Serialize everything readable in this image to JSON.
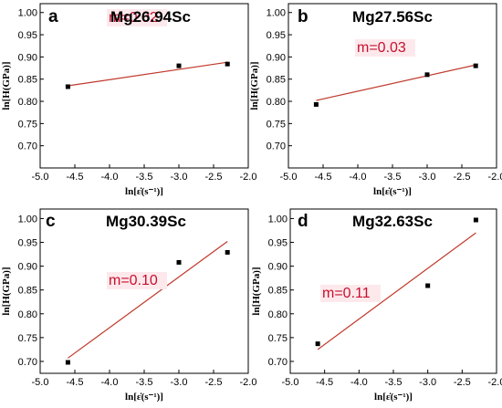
{
  "colors": {
    "fit_line": "#c0392b",
    "slope_text": "#c8102e",
    "point": "#000000",
    "label_highlight": "#fde9ec"
  },
  "chart_data": [
    {
      "type": "scatter",
      "panel_letter": "a",
      "title": "Mg26.94Sc",
      "xlabel": "ln[ε̇(s⁻¹)]",
      "ylabel": "ln[H(GPa)]",
      "xlim": [
        -5.0,
        -2.0
      ],
      "ylim": [
        0.65,
        1.02
      ],
      "xticks": [
        "-5.0",
        "-4.5",
        "-4.0",
        "-3.5",
        "-3.0",
        "-2.5",
        "-2.0"
      ],
      "yticks": [
        "0.70",
        "0.75",
        "0.80",
        "0.85",
        "0.90",
        "0.95",
        "1.00"
      ],
      "x": [
        -4.6,
        -3.0,
        -2.3
      ],
      "y": [
        0.833,
        0.88,
        0.884
      ],
      "fit": {
        "x": [
          -4.6,
          -2.3
        ],
        "y": [
          0.835,
          0.888
        ]
      },
      "annotation": "m=0.02"
    },
    {
      "type": "scatter",
      "panel_letter": "b",
      "title": "Mg27.56Sc",
      "xlabel": "ln[ε̇(s⁻¹)]",
      "ylabel": "ln[H(GPa)]",
      "xlim": [
        -5.0,
        -2.0
      ],
      "ylim": [
        0.65,
        1.02
      ],
      "xticks": [
        "-5.0",
        "-4.5",
        "-4.0",
        "-3.5",
        "-3.0",
        "-2.5",
        "-2.0"
      ],
      "yticks": [
        "0.70",
        "0.75",
        "0.80",
        "0.85",
        "0.90",
        "0.95",
        "1.00"
      ],
      "x": [
        -4.6,
        -3.0,
        -2.3
      ],
      "y": [
        0.793,
        0.86,
        0.88
      ],
      "fit": {
        "x": [
          -4.6,
          -2.3
        ],
        "y": [
          0.802,
          0.882
        ]
      },
      "annotation": "m=0.03"
    },
    {
      "type": "scatter",
      "panel_letter": "c",
      "title": "Mg30.39Sc",
      "xlabel": "ln[ε̇(s⁻¹)]",
      "ylabel": "ln[H(GPa)]",
      "xlim": [
        -5.0,
        -2.0
      ],
      "ylim": [
        0.675,
        1.02
      ],
      "xticks": [
        "-5.0",
        "-4.5",
        "-4.0",
        "-3.5",
        "-3.0",
        "-2.5",
        "-2.0"
      ],
      "yticks": [
        "0.70",
        "0.75",
        "0.80",
        "0.85",
        "0.90",
        "0.95",
        "1.00"
      ],
      "x": [
        -4.6,
        -3.0,
        -2.3
      ],
      "y": [
        0.698,
        0.908,
        0.929
      ],
      "fit": {
        "x": [
          -4.6,
          -2.3
        ],
        "y": [
          0.707,
          0.952
        ]
      },
      "annotation": "m=0.10"
    },
    {
      "type": "scatter",
      "panel_letter": "d",
      "title": "Mg32.63Sc",
      "xlabel": "ln[ε̇(s⁻¹)]",
      "ylabel": "ln[H(GPa)]",
      "xlim": [
        -5.0,
        -2.0
      ],
      "ylim": [
        0.675,
        1.02
      ],
      "xticks": [
        "-5.0",
        "-4.5",
        "-4.0",
        "-3.5",
        "-3.0",
        "-2.5",
        "-2.0"
      ],
      "yticks": [
        "0.70",
        "0.75",
        "0.80",
        "0.85",
        "0.90",
        "0.95",
        "1.00"
      ],
      "x": [
        -4.6,
        -3.0,
        -2.3
      ],
      "y": [
        0.737,
        0.859,
        0.997
      ],
      "fit": {
        "x": [
          -4.6,
          -2.3
        ],
        "y": [
          0.725,
          0.97
        ]
      },
      "annotation": "m=0.11"
    }
  ]
}
